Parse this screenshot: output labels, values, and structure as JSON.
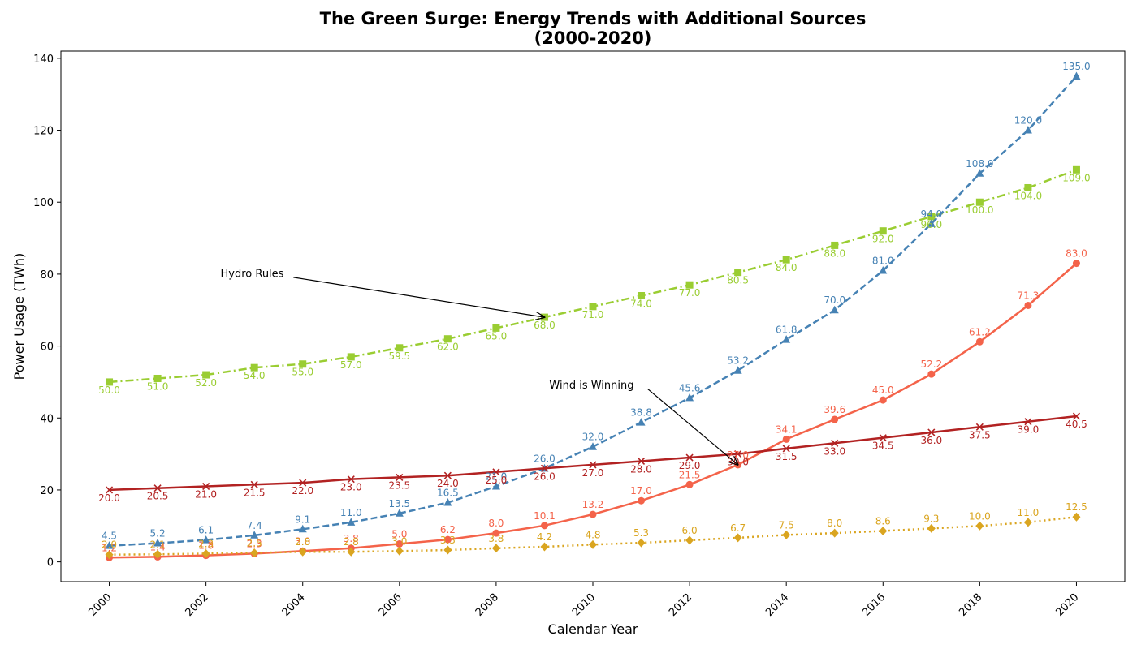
{
  "chart_data": {
    "type": "line",
    "title": "The Green Surge: Energy Trends with Additional Sources",
    "subtitle": "(2000-2020)",
    "xlabel": "Calendar Year",
    "ylabel": "Power Usage (TWh)",
    "xlim": [
      1999,
      2021
    ],
    "ylim": [
      -5.5,
      142
    ],
    "x_ticks": [
      2000,
      2002,
      2004,
      2006,
      2008,
      2010,
      2012,
      2014,
      2016,
      2018,
      2020
    ],
    "y_ticks": [
      0,
      20,
      40,
      60,
      80,
      100,
      120,
      140
    ],
    "grid": false,
    "x": [
      2000,
      2001,
      2002,
      2003,
      2004,
      2005,
      2006,
      2007,
      2008,
      2009,
      2010,
      2011,
      2012,
      2013,
      2014,
      2015,
      2016,
      2017,
      2018,
      2019,
      2020
    ],
    "series": [
      {
        "key": "hydro",
        "color": "#9acd32",
        "marker": "square",
        "dash": "dashdot",
        "label_pos": "below",
        "values": [
          50.0,
          51.0,
          52.0,
          54.0,
          55.0,
          57.0,
          59.5,
          62.0,
          65.0,
          68.0,
          71.0,
          74.0,
          77.0,
          80.5,
          84.0,
          88.0,
          92.0,
          96.0,
          100.0,
          104.0,
          109.0
        ]
      },
      {
        "key": "wind",
        "color": "#4682b4",
        "marker": "triangle",
        "dash": "dashed",
        "label_pos": "above",
        "values": [
          4.5,
          5.2,
          6.1,
          7.4,
          9.1,
          11.0,
          13.5,
          16.5,
          21.0,
          26.0,
          32.0,
          38.8,
          45.6,
          53.2,
          61.8,
          70.0,
          81.0,
          94.0,
          108.0,
          120.0,
          135.0
        ]
      },
      {
        "key": "solar",
        "color": "#f4634a",
        "marker": "circle",
        "dash": "solid",
        "label_pos": "above",
        "values": [
          1.2,
          1.4,
          1.8,
          2.3,
          3.0,
          3.8,
          5.0,
          6.2,
          8.0,
          10.1,
          13.2,
          17.0,
          21.5,
          27.0,
          34.1,
          39.6,
          45.0,
          52.2,
          61.2,
          71.3,
          83.0
        ]
      },
      {
        "key": "fourth",
        "color": "#b22222",
        "marker": "x",
        "dash": "solid",
        "label_pos": "below",
        "values": [
          20.0,
          20.5,
          21.0,
          21.5,
          22.0,
          23.0,
          23.5,
          24.0,
          25.0,
          26.0,
          27.0,
          28.0,
          29.0,
          30.0,
          31.5,
          33.0,
          34.5,
          36.0,
          37.5,
          39.0,
          40.5
        ]
      },
      {
        "key": "fifth",
        "color": "#daa520",
        "marker": "diamond",
        "dash": "dotted",
        "label_pos": "above",
        "values": [
          2.0,
          2.1,
          2.3,
          2.5,
          2.8,
          2.8,
          3.0,
          3.3,
          3.8,
          4.2,
          4.8,
          5.3,
          6.0,
          6.7,
          7.5,
          8.0,
          8.6,
          9.3,
          10.0,
          11.0,
          12.5
        ]
      }
    ],
    "annotations": [
      {
        "text": "Hydro Rules",
        "x": 2002.3,
        "y": 80,
        "target_x": 2009,
        "target_y": 68
      },
      {
        "text": "Wind is Winning",
        "x": 2009.1,
        "y": 49,
        "target_x": 2013,
        "target_y": 27
      }
    ]
  }
}
